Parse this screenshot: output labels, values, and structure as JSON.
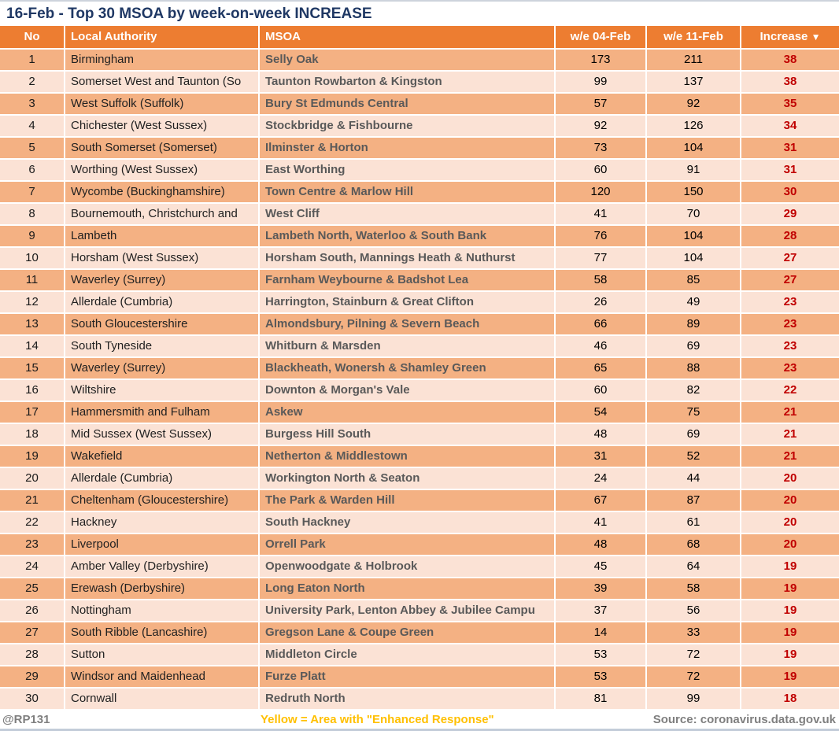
{
  "chart_data": {
    "type": "table",
    "title": "16-Feb - Top 30 MSOA by week-on-week INCREASE",
    "columns": [
      "No",
      "Local Authority",
      "MSOA",
      "w/e 04-Feb",
      "w/e 11-Feb",
      "Increase"
    ],
    "sort_icon": "▼",
    "rows": [
      {
        "no": 1,
        "local_authority": "Birmingham",
        "msoa": "Selly Oak",
        "we_04_feb": 173,
        "we_11_feb": 211,
        "increase": 38
      },
      {
        "no": 2,
        "local_authority": "Somerset West and Taunton (So",
        "msoa": "Taunton Rowbarton & Kingston",
        "we_04_feb": 99,
        "we_11_feb": 137,
        "increase": 38
      },
      {
        "no": 3,
        "local_authority": "West Suffolk (Suffolk)",
        "msoa": "Bury St Edmunds Central",
        "we_04_feb": 57,
        "we_11_feb": 92,
        "increase": 35
      },
      {
        "no": 4,
        "local_authority": "Chichester (West Sussex)",
        "msoa": "Stockbridge & Fishbourne",
        "we_04_feb": 92,
        "we_11_feb": 126,
        "increase": 34
      },
      {
        "no": 5,
        "local_authority": "South Somerset (Somerset)",
        "msoa": "Ilminster & Horton",
        "we_04_feb": 73,
        "we_11_feb": 104,
        "increase": 31
      },
      {
        "no": 6,
        "local_authority": "Worthing (West Sussex)",
        "msoa": "East Worthing",
        "we_04_feb": 60,
        "we_11_feb": 91,
        "increase": 31
      },
      {
        "no": 7,
        "local_authority": "Wycombe (Buckinghamshire)",
        "msoa": "Town Centre & Marlow Hill",
        "we_04_feb": 120,
        "we_11_feb": 150,
        "increase": 30
      },
      {
        "no": 8,
        "local_authority": "Bournemouth, Christchurch and",
        "msoa": "West Cliff",
        "we_04_feb": 41,
        "we_11_feb": 70,
        "increase": 29
      },
      {
        "no": 9,
        "local_authority": "Lambeth",
        "msoa": "Lambeth North, Waterloo & South Bank",
        "we_04_feb": 76,
        "we_11_feb": 104,
        "increase": 28
      },
      {
        "no": 10,
        "local_authority": "Horsham (West Sussex)",
        "msoa": "Horsham South, Mannings Heath & Nuthurst",
        "we_04_feb": 77,
        "we_11_feb": 104,
        "increase": 27
      },
      {
        "no": 11,
        "local_authority": "Waverley (Surrey)",
        "msoa": "Farnham Weybourne & Badshot Lea",
        "we_04_feb": 58,
        "we_11_feb": 85,
        "increase": 27
      },
      {
        "no": 12,
        "local_authority": "Allerdale (Cumbria)",
        "msoa": "Harrington, Stainburn & Great Clifton",
        "we_04_feb": 26,
        "we_11_feb": 49,
        "increase": 23
      },
      {
        "no": 13,
        "local_authority": "South Gloucestershire",
        "msoa": "Almondsbury, Pilning & Severn Beach",
        "we_04_feb": 66,
        "we_11_feb": 89,
        "increase": 23
      },
      {
        "no": 14,
        "local_authority": "South Tyneside",
        "msoa": "Whitburn & Marsden",
        "we_04_feb": 46,
        "we_11_feb": 69,
        "increase": 23
      },
      {
        "no": 15,
        "local_authority": "Waverley (Surrey)",
        "msoa": "Blackheath, Wonersh & Shamley Green",
        "we_04_feb": 65,
        "we_11_feb": 88,
        "increase": 23
      },
      {
        "no": 16,
        "local_authority": "Wiltshire",
        "msoa": "Downton & Morgan's Vale",
        "we_04_feb": 60,
        "we_11_feb": 82,
        "increase": 22
      },
      {
        "no": 17,
        "local_authority": "Hammersmith and Fulham",
        "msoa": "Askew",
        "we_04_feb": 54,
        "we_11_feb": 75,
        "increase": 21
      },
      {
        "no": 18,
        "local_authority": "Mid Sussex (West Sussex)",
        "msoa": "Burgess Hill South",
        "we_04_feb": 48,
        "we_11_feb": 69,
        "increase": 21
      },
      {
        "no": 19,
        "local_authority": "Wakefield",
        "msoa": "Netherton & Middlestown",
        "we_04_feb": 31,
        "we_11_feb": 52,
        "increase": 21
      },
      {
        "no": 20,
        "local_authority": "Allerdale (Cumbria)",
        "msoa": "Workington North & Seaton",
        "we_04_feb": 24,
        "we_11_feb": 44,
        "increase": 20
      },
      {
        "no": 21,
        "local_authority": "Cheltenham (Gloucestershire)",
        "msoa": "The Park & Warden Hill",
        "we_04_feb": 67,
        "we_11_feb": 87,
        "increase": 20
      },
      {
        "no": 22,
        "local_authority": "Hackney",
        "msoa": "South Hackney",
        "we_04_feb": 41,
        "we_11_feb": 61,
        "increase": 20
      },
      {
        "no": 23,
        "local_authority": "Liverpool",
        "msoa": "Orrell Park",
        "we_04_feb": 48,
        "we_11_feb": 68,
        "increase": 20
      },
      {
        "no": 24,
        "local_authority": "Amber Valley (Derbyshire)",
        "msoa": "Openwoodgate & Holbrook",
        "we_04_feb": 45,
        "we_11_feb": 64,
        "increase": 19
      },
      {
        "no": 25,
        "local_authority": "Erewash (Derbyshire)",
        "msoa": "Long Eaton North",
        "we_04_feb": 39,
        "we_11_feb": 58,
        "increase": 19
      },
      {
        "no": 26,
        "local_authority": "Nottingham",
        "msoa": "University Park, Lenton Abbey & Jubilee Campu",
        "we_04_feb": 37,
        "we_11_feb": 56,
        "increase": 19
      },
      {
        "no": 27,
        "local_authority": "South Ribble (Lancashire)",
        "msoa": "Gregson Lane & Coupe Green",
        "we_04_feb": 14,
        "we_11_feb": 33,
        "increase": 19
      },
      {
        "no": 28,
        "local_authority": "Sutton",
        "msoa": "Middleton Circle",
        "we_04_feb": 53,
        "we_11_feb": 72,
        "increase": 19
      },
      {
        "no": 29,
        "local_authority": "Windsor and Maidenhead",
        "msoa": "Furze Platt",
        "we_04_feb": 53,
        "we_11_feb": 72,
        "increase": 19
      },
      {
        "no": 30,
        "local_authority": "Cornwall",
        "msoa": "Redruth North",
        "we_04_feb": 81,
        "we_11_feb": 99,
        "increase": 18
      }
    ]
  },
  "footer": {
    "handle": "@RP131",
    "note": "Yellow = Area with \"Enhanced Response\"",
    "source": "Source: coronavirus.data.gov.uk"
  },
  "colors": {
    "header_orange": "#ED7D31",
    "row_dark": "#F4B183",
    "row_light": "#FBE2D5",
    "increase_red": "#C00000",
    "title_navy": "#1F3864",
    "note_yellow": "#FFC000",
    "footer_gray": "#7F7F7F"
  }
}
